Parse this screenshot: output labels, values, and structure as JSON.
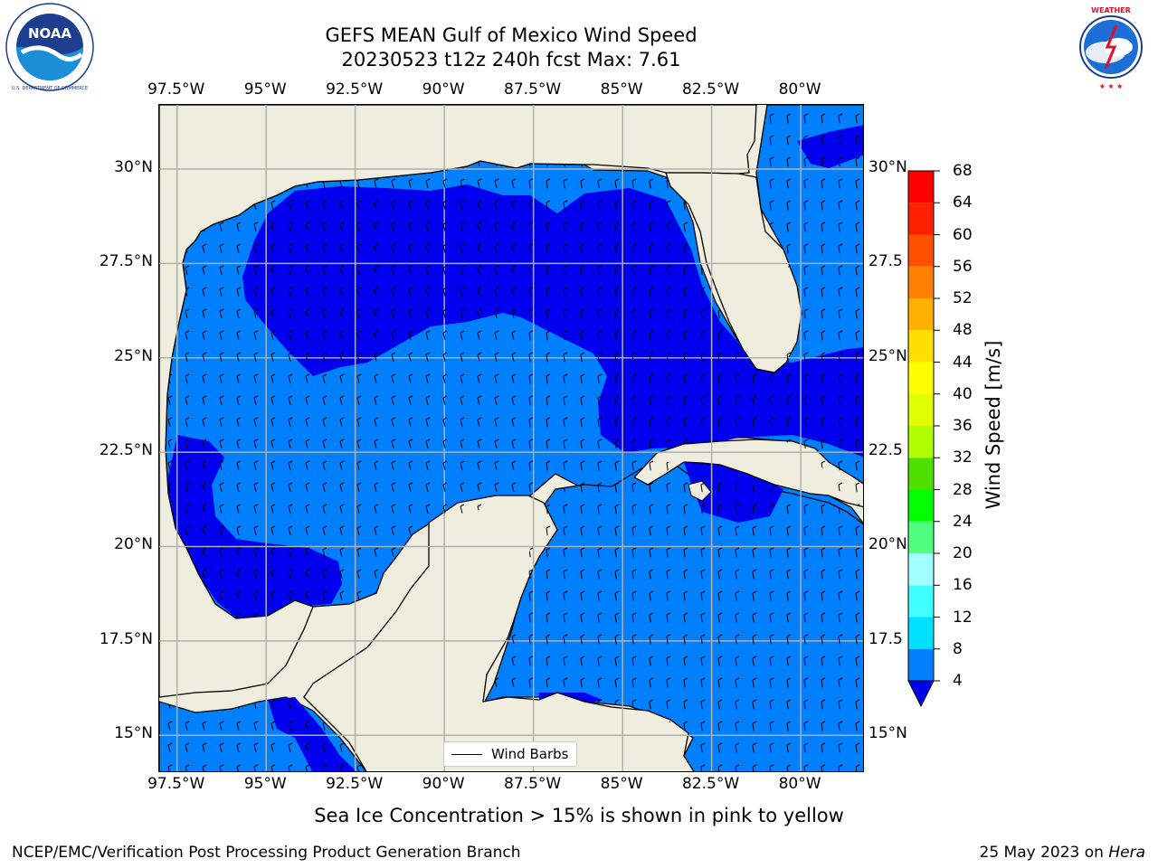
{
  "header": {
    "title": "GEFS MEAN Gulf of Mexico Wind Speed",
    "subtitle": "20230523 t12z 240h fcst   Max: 7.61"
  },
  "logos": {
    "noaa": {
      "icon": "noaa-logo",
      "text": "NOAA",
      "ring_text": "NATIONAL OCEANIC AND ATMOSPHERIC ADMINISTRATION  U.S. DEPARTMENT OF COMMERCE"
    },
    "nws": {
      "icon": "nws-logo",
      "ring_text": "NATIONAL WEATHER SERVICE"
    }
  },
  "map": {
    "lon_ticks": [
      "97.5°W",
      "95°W",
      "92.5°W",
      "90°W",
      "87.5°W",
      "85°W",
      "82.5°W",
      "80°W"
    ],
    "lat_ticks": [
      "30°N",
      "27.5°N",
      "25°N",
      "22.5°N",
      "20°N",
      "17.5°N",
      "15°N"
    ],
    "lat_ticks_right": [
      "30°N",
      "27.5",
      "25°N",
      "22.5",
      "20°N",
      "17.5",
      "15°N"
    ],
    "lon_range": [
      -98,
      -78.2
    ],
    "lat_range": [
      14,
      31.7
    ],
    "colors": {
      "land": "#efeddd",
      "ocean_4_8": "#0080ff",
      "ocean_lt4": "#0000ee",
      "grid": "#b0b0b0"
    }
  },
  "legend": {
    "label": "Wind Barbs"
  },
  "colorbar": {
    "title": "Wind Speed [m/s]",
    "unit": "m/s",
    "levels": [
      "4",
      "8",
      "12",
      "16",
      "20",
      "24",
      "28",
      "32",
      "36",
      "40",
      "44",
      "48",
      "52",
      "56",
      "60",
      "64",
      "68"
    ],
    "colors": [
      "#0080ff",
      "#00e0ff",
      "#40ffff",
      "#a0ffff",
      "#50ff80",
      "#00ff00",
      "#50e000",
      "#b0ff00",
      "#e0ff00",
      "#ffff00",
      "#ffe000",
      "#ffb000",
      "#ff8000",
      "#ff5000",
      "#ff2000",
      "#ff0000"
    ],
    "extend_below_color": "#0000ee"
  },
  "note": "Sea Ice Concentration > 15% is shown in pink to yellow",
  "footer": {
    "left": "NCEP/EMC/Verification Post Processing Product Generation Branch",
    "right_date": "25 May 2023 on ",
    "right_machine": "Hera"
  }
}
